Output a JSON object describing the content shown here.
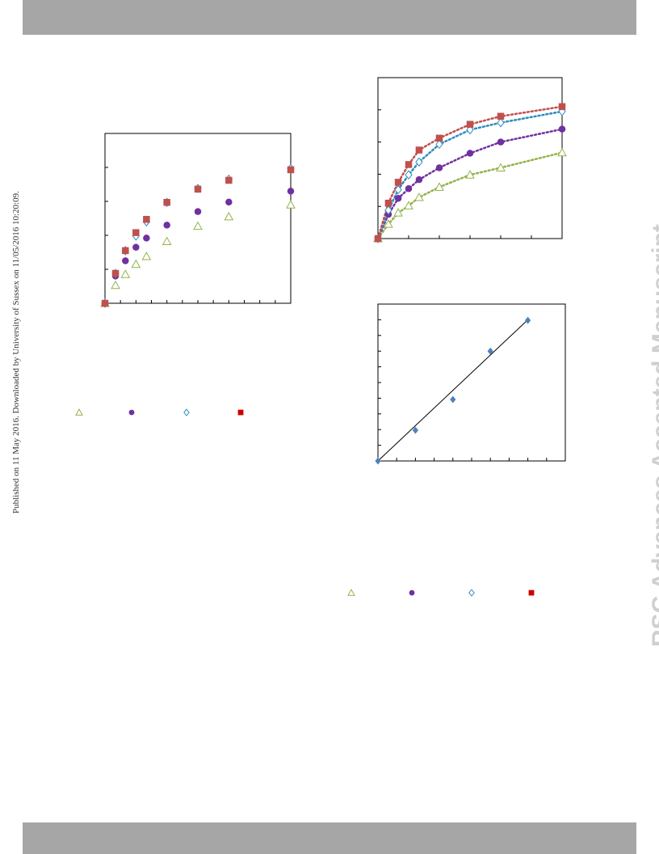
{
  "page": {
    "side_note": "Published on 11 May 2016. Downloaded by University of Sussex on 11/05/2016 10:20:09.",
    "watermark": "RSC Advances Accepted Manuscript"
  },
  "colors": {
    "band": "#a6a6a6",
    "series_a": "#92b34a",
    "series_b": "#7030a0",
    "series_c": "#2e8bc0",
    "series_d": "#c0504d",
    "legend_d": "#cc0000",
    "series_e": "#4f81bd"
  },
  "legend_left": {
    "markers": [
      "triangle-open",
      "circle-filled",
      "diamond-open",
      "square-filled"
    ]
  },
  "legend_right": {
    "markers": [
      "triangle-open",
      "circle-filled",
      "diamond-open",
      "square-filled"
    ]
  },
  "chart_data": [
    {
      "type": "scatter",
      "title": "",
      "xlabel": "",
      "ylabel": "",
      "xlim": [
        0,
        300
      ],
      "ylim": [
        0,
        5
      ],
      "grid": false,
      "x_ticks": 12,
      "y_ticks": 5,
      "series": [
        {
          "marker": "triangle-open",
          "x": [
            0,
            17,
            33,
            50,
            67,
            100,
            150,
            200,
            300
          ],
          "y": [
            0,
            0.53,
            0.85,
            1.15,
            1.38,
            1.82,
            2.27,
            2.55,
            2.9
          ]
        },
        {
          "marker": "circle-filled",
          "x": [
            0,
            17,
            33,
            50,
            67,
            100,
            150,
            200,
            300
          ],
          "y": [
            0,
            0.8,
            1.25,
            1.65,
            1.92,
            2.3,
            2.7,
            2.98,
            3.3
          ]
        },
        {
          "marker": "diamond-open",
          "x": [
            0,
            17,
            33,
            50,
            67,
            100,
            150,
            200,
            300
          ],
          "y": [
            0,
            0.88,
            1.55,
            1.98,
            2.4,
            2.97,
            3.38,
            3.65,
            3.97
          ]
        },
        {
          "marker": "square-filled",
          "x": [
            0,
            17,
            33,
            50,
            67,
            100,
            150,
            200,
            300
          ],
          "y": [
            0,
            0.88,
            1.55,
            2.08,
            2.47,
            2.97,
            3.36,
            3.62,
            3.93
          ]
        }
      ]
    },
    {
      "type": "scatter",
      "title": "",
      "xlabel": "",
      "ylabel": "",
      "xlim": [
        0,
        300
      ],
      "ylim": [
        0,
        5
      ],
      "grid": false,
      "x_ticks": 6,
      "y_ticks": 5,
      "trendlines": "dotted",
      "series": [
        {
          "marker": "triangle-open",
          "x": [
            0,
            17,
            33,
            50,
            67,
            100,
            150,
            200,
            300
          ],
          "y": [
            0,
            0.45,
            0.8,
            1.02,
            1.28,
            1.6,
            1.98,
            2.2,
            2.67
          ]
        },
        {
          "marker": "circle-filled",
          "x": [
            0,
            17,
            33,
            50,
            67,
            100,
            150,
            200,
            300
          ],
          "y": [
            0,
            0.75,
            1.25,
            1.55,
            1.83,
            2.2,
            2.65,
            3.0,
            3.4
          ]
        },
        {
          "marker": "diamond-open",
          "x": [
            0,
            17,
            33,
            50,
            67,
            100,
            150,
            200,
            300
          ],
          "y": [
            0,
            0.88,
            1.52,
            1.98,
            2.38,
            2.93,
            3.38,
            3.6,
            3.95
          ]
        },
        {
          "marker": "square-filled",
          "x": [
            0,
            17,
            33,
            50,
            67,
            100,
            150,
            200,
            300
          ],
          "y": [
            0,
            1.1,
            1.75,
            2.3,
            2.75,
            3.12,
            3.55,
            3.8,
            4.1
          ]
        }
      ]
    },
    {
      "type": "scatter",
      "title": "",
      "xlabel": "",
      "ylabel": "",
      "xlim": [
        0,
        5
      ],
      "ylim": [
        0,
        5
      ],
      "grid": false,
      "x_ticks": 10,
      "y_ticks": 10,
      "fit_line": {
        "x": [
          0,
          4
        ],
        "y": [
          0,
          4.5
        ]
      },
      "series": [
        {
          "marker": "diamond-filled",
          "x": [
            0,
            1,
            2,
            3,
            4
          ],
          "y": [
            0,
            0.98,
            1.96,
            3.5,
            4.48
          ]
        }
      ]
    }
  ]
}
